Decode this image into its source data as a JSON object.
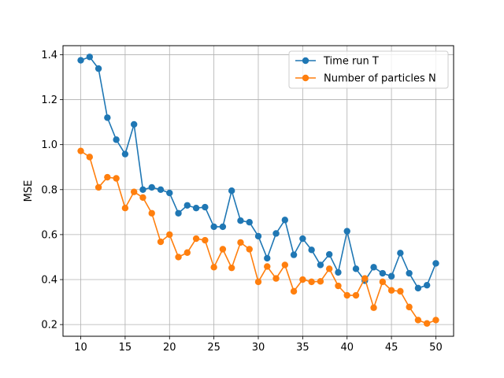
{
  "chart_data": {
    "type": "line",
    "xlabel": "",
    "ylabel": "MSE",
    "xlim": [
      8.0,
      52.0
    ],
    "ylim": [
      0.148,
      1.44
    ],
    "xticks": [
      10,
      15,
      20,
      25,
      30,
      35,
      40,
      45,
      50
    ],
    "yticks": [
      0.2,
      0.4,
      0.6,
      0.8,
      1.0,
      1.2,
      1.4
    ],
    "grid": true,
    "legend_position": "top-right",
    "x": [
      10,
      11,
      12,
      13,
      14,
      15,
      16,
      17,
      18,
      19,
      20,
      21,
      22,
      23,
      24,
      25,
      26,
      27,
      28,
      29,
      30,
      31,
      32,
      33,
      34,
      35,
      36,
      37,
      38,
      39,
      40,
      41,
      42,
      43,
      44,
      45,
      46,
      47,
      48,
      49,
      50
    ],
    "series": [
      {
        "name": "Time run T",
        "color": "#1f77b4",
        "values": [
          1.375,
          1.39,
          1.338,
          1.12,
          1.022,
          0.958,
          1.09,
          0.8,
          0.81,
          0.8,
          0.785,
          0.695,
          0.73,
          0.718,
          0.722,
          0.635,
          0.635,
          0.795,
          0.662,
          0.655,
          0.593,
          0.495,
          0.605,
          0.665,
          0.51,
          0.582,
          0.532,
          0.465,
          0.512,
          0.432,
          0.615,
          0.448,
          0.395,
          0.455,
          0.428,
          0.415,
          0.518,
          0.428,
          0.362,
          0.375,
          0.472
        ]
      },
      {
        "name": "Number of particles N",
        "color": "#ff7f0e",
        "values": [
          0.972,
          0.945,
          0.81,
          0.855,
          0.85,
          0.718,
          0.79,
          0.765,
          0.695,
          0.568,
          0.6,
          0.5,
          0.52,
          0.582,
          0.575,
          0.455,
          0.535,
          0.452,
          0.565,
          0.535,
          0.39,
          0.458,
          0.405,
          0.465,
          0.348,
          0.4,
          0.39,
          0.392,
          0.448,
          0.372,
          0.33,
          0.33,
          0.405,
          0.275,
          0.39,
          0.352,
          0.348,
          0.278,
          0.22,
          0.205,
          0.22
        ]
      }
    ]
  }
}
